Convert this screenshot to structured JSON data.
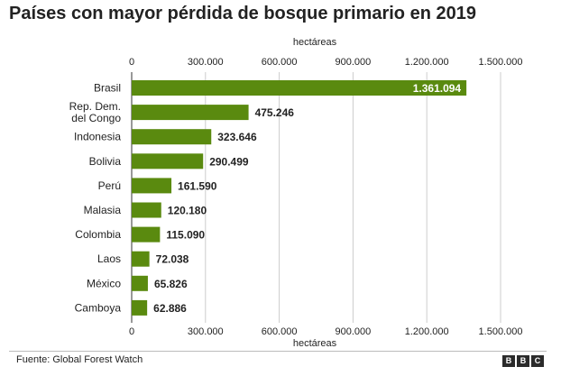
{
  "title": "Países con mayor pérdida de bosque primario en 2019",
  "source": "Fuente: Global Forest Watch",
  "logo_letters": [
    "B",
    "B",
    "C"
  ],
  "colors": {
    "bar": "#5a8a0f",
    "text": "#222222",
    "grid": "#cccccc",
    "axis": "#333333"
  },
  "chart_data": {
    "type": "bar",
    "orientation": "horizontal",
    "title": "Países con mayor pérdida de bosque primario en 2019",
    "xlabel": "hectáreas",
    "ylabel": "",
    "xlim": [
      0,
      1500000
    ],
    "ticks": [
      0,
      300000,
      600000,
      900000,
      1200000,
      1500000
    ],
    "tick_labels": [
      "0",
      "300.000",
      "600.000",
      "900.000",
      "1.200.000",
      "1.500.000"
    ],
    "grid": true,
    "categories": [
      [
        "Brasil"
      ],
      [
        "Rep. Dem.",
        "del Congo"
      ],
      [
        "Indonesia"
      ],
      [
        "Bolivia"
      ],
      [
        "Perú"
      ],
      [
        "Malasia"
      ],
      [
        "Colombia"
      ],
      [
        "Laos"
      ],
      [
        "México"
      ],
      [
        "Camboya"
      ]
    ],
    "values": [
      1361094,
      475246,
      323646,
      290499,
      161590,
      120180,
      115090,
      72038,
      65826,
      62886
    ],
    "value_labels": [
      "1.361.094",
      "475.246",
      "323.646",
      "290.499",
      "161.590",
      "120.180",
      "115.090",
      "72.038",
      "65.826",
      "62.886"
    ]
  }
}
